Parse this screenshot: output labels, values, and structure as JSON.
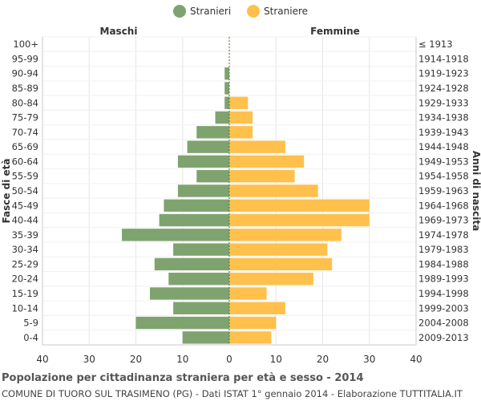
{
  "legend": {
    "male": "Stranieri",
    "female": "Straniere"
  },
  "colors": {
    "male": "#7fa36f",
    "female": "#ffc04c",
    "grid": "#e6e6e6",
    "axis": "#c9c9c9",
    "center": "#556b2f"
  },
  "header": {
    "left": "Maschi",
    "right": "Femmine"
  },
  "title": "Popolazione per cittadinanza straniera per età e sesso - 2014",
  "subtitle": "COMUNE DI TUORO SUL TRASIMENO (PG) - Dati ISTAT 1° gennaio 2014 - Elaborazione TUTTITALIA.IT",
  "chart_data": {
    "type": "bar",
    "orientation": "horizontal",
    "ylabel": "Fasce di età",
    "y2label": "Anni di nascita",
    "xlim": [
      -40,
      40
    ],
    "xticks": [
      "40",
      "30",
      "20",
      "10",
      "0",
      "10",
      "20",
      "30",
      "40"
    ],
    "categories": [
      "100+",
      "95-99",
      "90-94",
      "85-89",
      "80-84",
      "75-79",
      "70-74",
      "65-69",
      "60-64",
      "55-59",
      "50-54",
      "45-49",
      "40-44",
      "35-39",
      "30-34",
      "25-29",
      "20-24",
      "15-19",
      "10-14",
      "5-9",
      "0-4"
    ],
    "birth_years": [
      "≤ 1913",
      "1914-1918",
      "1919-1923",
      "1924-1928",
      "1929-1933",
      "1934-1938",
      "1939-1943",
      "1944-1948",
      "1949-1953",
      "1954-1958",
      "1959-1963",
      "1964-1968",
      "1969-1973",
      "1974-1978",
      "1979-1983",
      "1984-1988",
      "1989-1993",
      "1994-1998",
      "1999-2003",
      "2004-2008",
      "2009-2013"
    ],
    "series": [
      {
        "name": "Stranieri",
        "values": [
          0,
          0,
          1,
          1,
          1,
          3,
          7,
          9,
          11,
          7,
          11,
          14,
          15,
          23,
          12,
          16,
          13,
          17,
          12,
          20,
          10
        ]
      },
      {
        "name": "Straniere",
        "values": [
          0,
          0,
          0,
          0,
          4,
          5,
          5,
          12,
          16,
          14,
          19,
          30,
          30,
          24,
          21,
          22,
          18,
          8,
          12,
          10,
          9
        ]
      }
    ]
  }
}
